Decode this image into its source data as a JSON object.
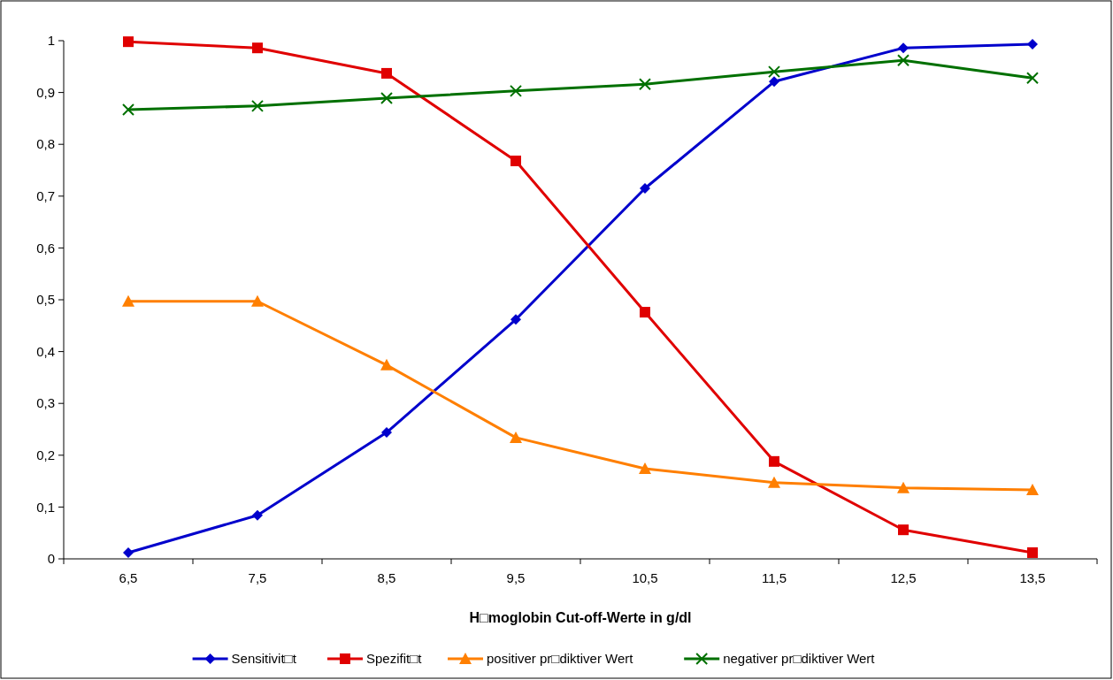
{
  "chart_data": {
    "type": "line",
    "xlabel": "H□moglobin Cut-off-Werte in g/dl",
    "categories": [
      "6,5",
      "7,5",
      "8,5",
      "9,5",
      "10,5",
      "11,5",
      "12,5",
      "13,5"
    ],
    "ylim": [
      0,
      1
    ],
    "yticks": [
      0,
      {
        "value": 0.1,
        "label": "0,1"
      },
      {
        "value": 0.2,
        "label": "0,2"
      },
      {
        "value": 0.3,
        "label": "0,3"
      },
      {
        "value": 0.4,
        "label": "0,4"
      },
      {
        "value": 0.5,
        "label": "0,5"
      },
      {
        "value": 0.6,
        "label": "0,6"
      },
      {
        "value": 0.7,
        "label": "0,7"
      },
      {
        "value": 0.8,
        "label": "0,8"
      },
      {
        "value": 0.9,
        "label": "0,9"
      },
      1
    ],
    "grid": false,
    "legend": "bottom",
    "series": [
      {
        "name": "Sensitivit□t",
        "color": "#0000cc",
        "marker": "diamond",
        "values": [
          0.012,
          0.084,
          0.244,
          0.462,
          0.715,
          0.921,
          0.986,
          0.993
        ]
      },
      {
        "name": "Spezifit□t",
        "color": "#e00000",
        "marker": "square",
        "values": [
          0.998,
          0.986,
          0.937,
          0.768,
          0.476,
          0.188,
          0.056,
          0.012
        ]
      },
      {
        "name": "positiver pr□diktiver Wert",
        "color": "#ff7f00",
        "marker": "triangle",
        "values": [
          0.497,
          0.497,
          0.374,
          0.234,
          0.174,
          0.147,
          0.137,
          0.133
        ]
      },
      {
        "name": "negativer pr□diktiver Wert",
        "color": "#007000",
        "marker": "cross",
        "values": [
          0.867,
          0.874,
          0.889,
          0.903,
          0.916,
          0.94,
          0.962,
          0.928
        ]
      }
    ]
  }
}
